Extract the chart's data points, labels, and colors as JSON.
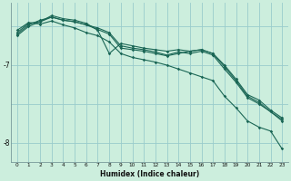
{
  "xlabel": "Humidex (Indice chaleur)",
  "bg_color": "#cceedd",
  "grid_color": "#99cccc",
  "line_color": "#1a6655",
  "xlim": [
    -0.5,
    23.5
  ],
  "ylim": [
    -8.25,
    -6.2
  ],
  "yticks": [
    -8,
    -7
  ],
  "ytick_labels": [
    "-8",
    "-7"
  ],
  "xticks": [
    0,
    1,
    2,
    3,
    4,
    5,
    6,
    7,
    8,
    9,
    10,
    11,
    12,
    13,
    14,
    15,
    16,
    17,
    18,
    19,
    20,
    21,
    22,
    23
  ],
  "series": [
    {
      "x": [
        0,
        1,
        2,
        3,
        4,
        5,
        6,
        7,
        8,
        9,
        10,
        11,
        12,
        13,
        14,
        15,
        16,
        17,
        18,
        19,
        20,
        21,
        22,
        23
      ],
      "y": [
        -6.55,
        -6.45,
        -6.47,
        -6.43,
        -6.48,
        -6.52,
        -6.58,
        -6.62,
        -6.7,
        -6.85,
        -6.9,
        -6.93,
        -6.96,
        -7.0,
        -7.05,
        -7.1,
        -7.15,
        -7.2,
        -7.4,
        -7.55,
        -7.72,
        -7.8,
        -7.85,
        -8.08
      ]
    },
    {
      "x": [
        0,
        1,
        2,
        3,
        4,
        5,
        6,
        7,
        8,
        9,
        10,
        11,
        12,
        13,
        14,
        15,
        16,
        17,
        18,
        19,
        20,
        21,
        22,
        23
      ],
      "y": [
        -6.6,
        -6.48,
        -6.42,
        -6.38,
        -6.42,
        -6.44,
        -6.48,
        -6.52,
        -6.58,
        -6.75,
        -6.78,
        -6.8,
        -6.83,
        -6.87,
        -6.83,
        -6.85,
        -6.82,
        -6.87,
        -7.05,
        -7.22,
        -7.42,
        -7.5,
        -7.6,
        -7.72
      ]
    },
    {
      "x": [
        0,
        1,
        2,
        3,
        4,
        5,
        6,
        7,
        8,
        9,
        10,
        11,
        12,
        13,
        14,
        15,
        16,
        17,
        18,
        19,
        20,
        21,
        22,
        23
      ],
      "y": [
        -6.62,
        -6.5,
        -6.44,
        -6.36,
        -6.4,
        -6.42,
        -6.46,
        -6.55,
        -6.85,
        -6.72,
        -6.75,
        -6.78,
        -6.8,
        -6.82,
        -6.8,
        -6.82,
        -6.8,
        -6.85,
        -7.0,
        -7.18,
        -7.38,
        -7.45,
        -7.58,
        -7.68
      ]
    },
    {
      "x": [
        0,
        1,
        2,
        3,
        4,
        5,
        6,
        7,
        8,
        9,
        10,
        11,
        12,
        13,
        14,
        15,
        16,
        17,
        18,
        19,
        20,
        21,
        22,
        23
      ],
      "y": [
        -6.58,
        -6.46,
        -6.44,
        -6.38,
        -6.42,
        -6.44,
        -6.48,
        -6.54,
        -6.6,
        -6.78,
        -6.8,
        -6.82,
        -6.85,
        -6.88,
        -6.85,
        -6.82,
        -6.8,
        -6.85,
        -7.02,
        -7.2,
        -7.4,
        -7.48,
        -7.6,
        -7.7
      ]
    }
  ]
}
